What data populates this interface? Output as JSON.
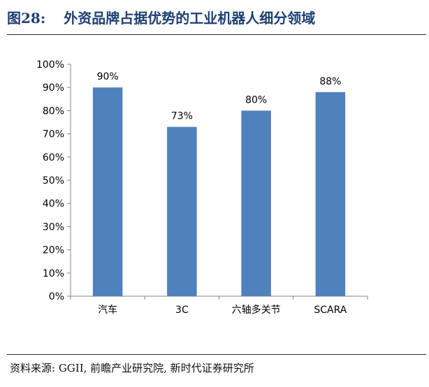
{
  "header": {
    "figure_number": "图28:",
    "title": "外资品牌占据优势的工业机器人细分领域"
  },
  "source_note": "资料来源: GGII, 前瞻产业研究院, 新时代证券研究所",
  "chart_data": {
    "type": "bar",
    "title": "",
    "xlabel": "",
    "ylabel": "",
    "categories": [
      "汽车",
      "3C",
      "六轴多关节",
      "SCARA"
    ],
    "values": [
      90,
      73,
      80,
      88
    ],
    "data_labels": [
      "90%",
      "73%",
      "80%",
      "88%"
    ],
    "ylim": [
      0,
      100
    ],
    "yticks": [
      0,
      10,
      20,
      30,
      40,
      50,
      60,
      70,
      80,
      90,
      100
    ],
    "ytick_labels": [
      "0%",
      "10%",
      "20%",
      "30%",
      "40%",
      "50%",
      "60%",
      "70%",
      "80%",
      "90%",
      "100%"
    ],
    "grid": false,
    "legend": "none",
    "bar_color": "#4f81bd"
  }
}
